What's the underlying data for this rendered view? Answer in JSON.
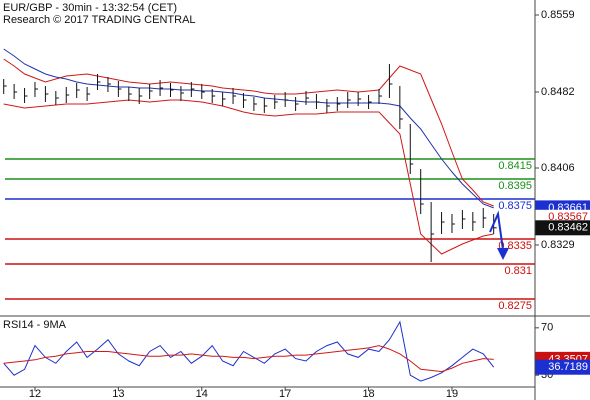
{
  "chart_data": [
    {
      "type": "ohlc",
      "title": "EUR/GBP - 30min - 13:32:54 (CET)",
      "subtitle": "Research © 2017 TRADING CENTRAL",
      "color": "#111111",
      "high": [
        0.8495,
        0.849,
        0.8486,
        0.8492,
        0.8488,
        0.8483,
        0.8487,
        0.8491,
        0.8487,
        0.85,
        0.8497,
        0.8493,
        0.8487,
        0.8486,
        0.849,
        0.8494,
        0.8491,
        0.8488,
        0.8492,
        0.849,
        0.8485,
        0.8482,
        0.8486,
        0.8481,
        0.8477,
        0.8476,
        0.8479,
        0.8482,
        0.8477,
        0.8483,
        0.848,
        0.8475,
        0.8477,
        0.8482,
        0.8482,
        0.8479,
        0.8485,
        0.851,
        0.8488,
        0.845,
        0.8405,
        0.8372,
        0.8362,
        0.836,
        0.8364,
        0.8362,
        0.8366,
        0.836
      ],
      "low": [
        0.848,
        0.8475,
        0.8471,
        0.8477,
        0.8472,
        0.8469,
        0.8471,
        0.8476,
        0.8473,
        0.8484,
        0.8482,
        0.8477,
        0.8473,
        0.847,
        0.8475,
        0.8478,
        0.8477,
        0.8473,
        0.8477,
        0.8475,
        0.8471,
        0.8468,
        0.847,
        0.8466,
        0.8463,
        0.8461,
        0.8465,
        0.8467,
        0.8463,
        0.8469,
        0.8465,
        0.8461,
        0.8463,
        0.8466,
        0.8468,
        0.8465,
        0.847,
        0.8476,
        0.8445,
        0.84,
        0.836,
        0.8312,
        0.834,
        0.8341,
        0.8345,
        0.8343,
        0.8346,
        0.834
      ],
      "close": [
        0.8488,
        0.8482,
        0.8478,
        0.8485,
        0.848,
        0.8476,
        0.8479,
        0.8484,
        0.848,
        0.8492,
        0.849,
        0.8485,
        0.848,
        0.8478,
        0.8483,
        0.8486,
        0.8484,
        0.8481,
        0.8485,
        0.8482,
        0.8478,
        0.8475,
        0.8478,
        0.8474,
        0.847,
        0.8468,
        0.8472,
        0.8474,
        0.847,
        0.8476,
        0.8472,
        0.8468,
        0.847,
        0.8474,
        0.8475,
        0.8472,
        0.8478,
        0.849,
        0.8455,
        0.841,
        0.837,
        0.834,
        0.8352,
        0.835,
        0.8355,
        0.8352,
        0.8356,
        0.83462
      ],
      "series": [
        {
          "color": "#d01818",
          "values": [
            0.8515,
            0.8508,
            0.85,
            0.8496,
            0.8492,
            0.8495,
            0.8498,
            0.8499,
            0.85,
            0.8498,
            0.8496,
            0.8494,
            0.8492,
            0.8491,
            0.849,
            0.8491,
            0.8492,
            0.8491,
            0.849,
            0.8489,
            0.8488,
            0.8486,
            0.8485,
            0.8484,
            0.8483,
            0.8481,
            0.848,
            0.848,
            0.848,
            0.8481,
            0.8482,
            0.8483,
            0.8484,
            0.8483,
            0.8482,
            0.8483,
            0.8484,
            0.8496,
            0.8508,
            0.8504,
            0.85,
            0.8475,
            0.845,
            0.8422,
            0.8395,
            0.8384,
            0.8372,
            0.8368
          ]
        },
        {
          "color": "#d01818",
          "values": [
            0.847,
            0.8468,
            0.8466,
            0.8467,
            0.8468,
            0.8469,
            0.847,
            0.847,
            0.847,
            0.8471,
            0.8472,
            0.8473,
            0.8474,
            0.8473,
            0.8472,
            0.8473,
            0.8474,
            0.8474,
            0.8473,
            0.8472,
            0.847,
            0.8468,
            0.8465,
            0.8462,
            0.846,
            0.8459,
            0.8458,
            0.8459,
            0.846,
            0.846,
            0.846,
            0.8461,
            0.8462,
            0.8462,
            0.8462,
            0.8462,
            0.8462,
            0.8451,
            0.844,
            0.839,
            0.834,
            0.833,
            0.832,
            0.8325,
            0.833,
            0.8334,
            0.8338,
            0.834
          ]
        },
        {
          "color": "#2233aa",
          "values": [
            0.8525,
            0.8518,
            0.851,
            0.8505,
            0.85,
            0.8497,
            0.8495,
            0.8492,
            0.849,
            0.8489,
            0.8488,
            0.8487,
            0.8487,
            0.8486,
            0.8486,
            0.8485,
            0.8485,
            0.8484,
            0.8484,
            0.8483,
            0.8483,
            0.8482,
            0.8481,
            0.8479,
            0.8478,
            0.8476,
            0.8475,
            0.8474,
            0.8473,
            0.8472,
            0.8472,
            0.8471,
            0.8471,
            0.8471,
            0.8471,
            0.8471,
            0.8471,
            0.847,
            0.8468,
            0.8456,
            0.8445,
            0.843,
            0.8415,
            0.8402,
            0.839,
            0.838,
            0.837,
            0.83661
          ]
        }
      ],
      "levels": [
        {
          "value": 0.8415,
          "color": "#1a8f1a"
        },
        {
          "value": 0.8395,
          "color": "#1a8f1a"
        },
        {
          "value": 0.8375,
          "color": "#1c2fd0"
        },
        {
          "value": 0.8335,
          "color": "#cc1010"
        },
        {
          "value": 0.831,
          "color": "#cc1010"
        },
        {
          "value": 0.8275,
          "color": "#cc1010"
        }
      ],
      "markers": [
        {
          "value": 0.83567,
          "color": "#cc1010"
        }
      ],
      "ylim": [
        0.8259,
        0.8574
      ],
      "yticks": [
        0.8559,
        0.8482,
        0.8406,
        0.8329
      ]
    },
    {
      "type": "line",
      "title": "RSI14 - 9MA",
      "categories": [
        null,
        null,
        null,
        "12",
        null,
        null,
        null,
        null,
        null,
        null,
        null,
        "13",
        null,
        null,
        null,
        null,
        null,
        null,
        null,
        "14",
        null,
        null,
        null,
        null,
        null,
        null,
        null,
        "17",
        null,
        null,
        null,
        null,
        null,
        null,
        null,
        "18",
        null,
        null,
        null,
        null,
        null,
        null,
        null,
        "19",
        null,
        null,
        null,
        null
      ],
      "series": [
        {
          "color": "#1c2fd0",
          "values": [
            40,
            30,
            35,
            55,
            45,
            40,
            50,
            58,
            45,
            52,
            60,
            48,
            42,
            38,
            50,
            55,
            45,
            50,
            40,
            46,
            55,
            42,
            38,
            50,
            45,
            40,
            48,
            52,
            44,
            42,
            50,
            55,
            58,
            48,
            45,
            52,
            50,
            60,
            75,
            30,
            25,
            28,
            32,
            38,
            45,
            52,
            48,
            36.7189
          ]
        },
        {
          "color": "#d01818",
          "values": [
            40,
            41,
            42,
            43,
            45,
            46,
            48,
            49,
            50,
            50,
            50,
            49,
            48,
            47,
            46,
            46,
            47,
            47,
            48,
            47,
            46,
            46,
            45,
            45,
            44,
            45,
            46,
            46,
            47,
            47,
            48,
            49,
            50,
            51,
            52,
            53,
            55,
            52,
            48,
            42,
            35,
            34,
            33,
            36,
            40,
            42,
            44,
            43.3507
          ]
        }
      ],
      "ylim": [
        20,
        80
      ],
      "yticks": [
        70,
        30
      ]
    }
  ]
}
